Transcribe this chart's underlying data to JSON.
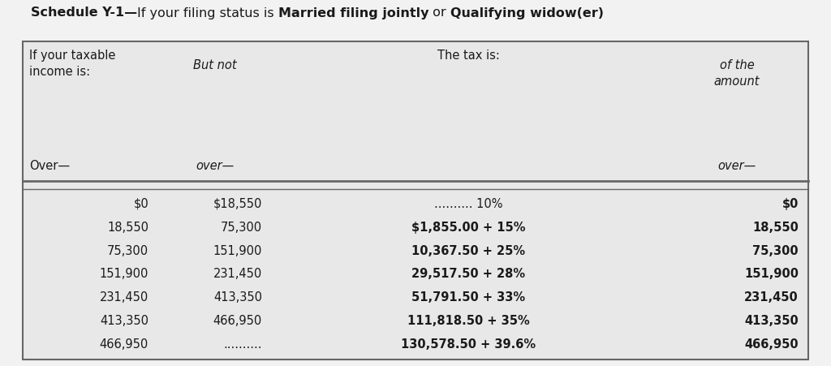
{
  "title_parts": [
    {
      "text": "Schedule Y-1—",
      "bold": true
    },
    {
      "text": "If your filing status is ",
      "bold": false
    },
    {
      "text": "Married filing jointly",
      "bold": true
    },
    {
      "text": " or ",
      "bold": false
    },
    {
      "text": "Qualifying widow(er)",
      "bold": true
    }
  ],
  "header_col1_line1": "If your taxable",
  "header_col1_line2": "income is:",
  "header_col1_line3": "Over—",
  "header_col2_line1": "But not",
  "header_col2_line2": "over—",
  "header_center": "The tax is:",
  "header_col4_line1": "of the",
  "header_col4_line2": "amount",
  "header_col4_line3": "over—",
  "rows": [
    [
      "$0",
      "$18,550",
      ".......... 10%",
      "$0"
    ],
    [
      "18,550",
      "75,300",
      "$1,855.00 + 15%",
      "18,550"
    ],
    [
      "75,300",
      "151,900",
      "10,367.50 + 25%",
      "75,300"
    ],
    [
      "151,900",
      "231,450",
      "29,517.50 + 28%",
      "151,900"
    ],
    [
      "231,450",
      "413,350",
      "51,791.50 + 33%",
      "231,450"
    ],
    [
      "413,350",
      "466,950",
      "111,818.50 + 35%",
      "413,350"
    ],
    [
      "466,950",
      "..........",
      "130,578.50 + 39.6%",
      "466,950"
    ]
  ],
  "bold_col3_rows": [
    1,
    2,
    3,
    4,
    5,
    6
  ],
  "bold_col4_rows": [
    0,
    1,
    2,
    3,
    4,
    5,
    6
  ],
  "bg_color": "#dcdcdc",
  "outer_bg": "#e8e8e8",
  "border_color": "#666666",
  "text_color": "#1a1a1a",
  "title_bg": "#f2f2f2",
  "fontsize": 10.5,
  "title_fontsize": 11.5
}
